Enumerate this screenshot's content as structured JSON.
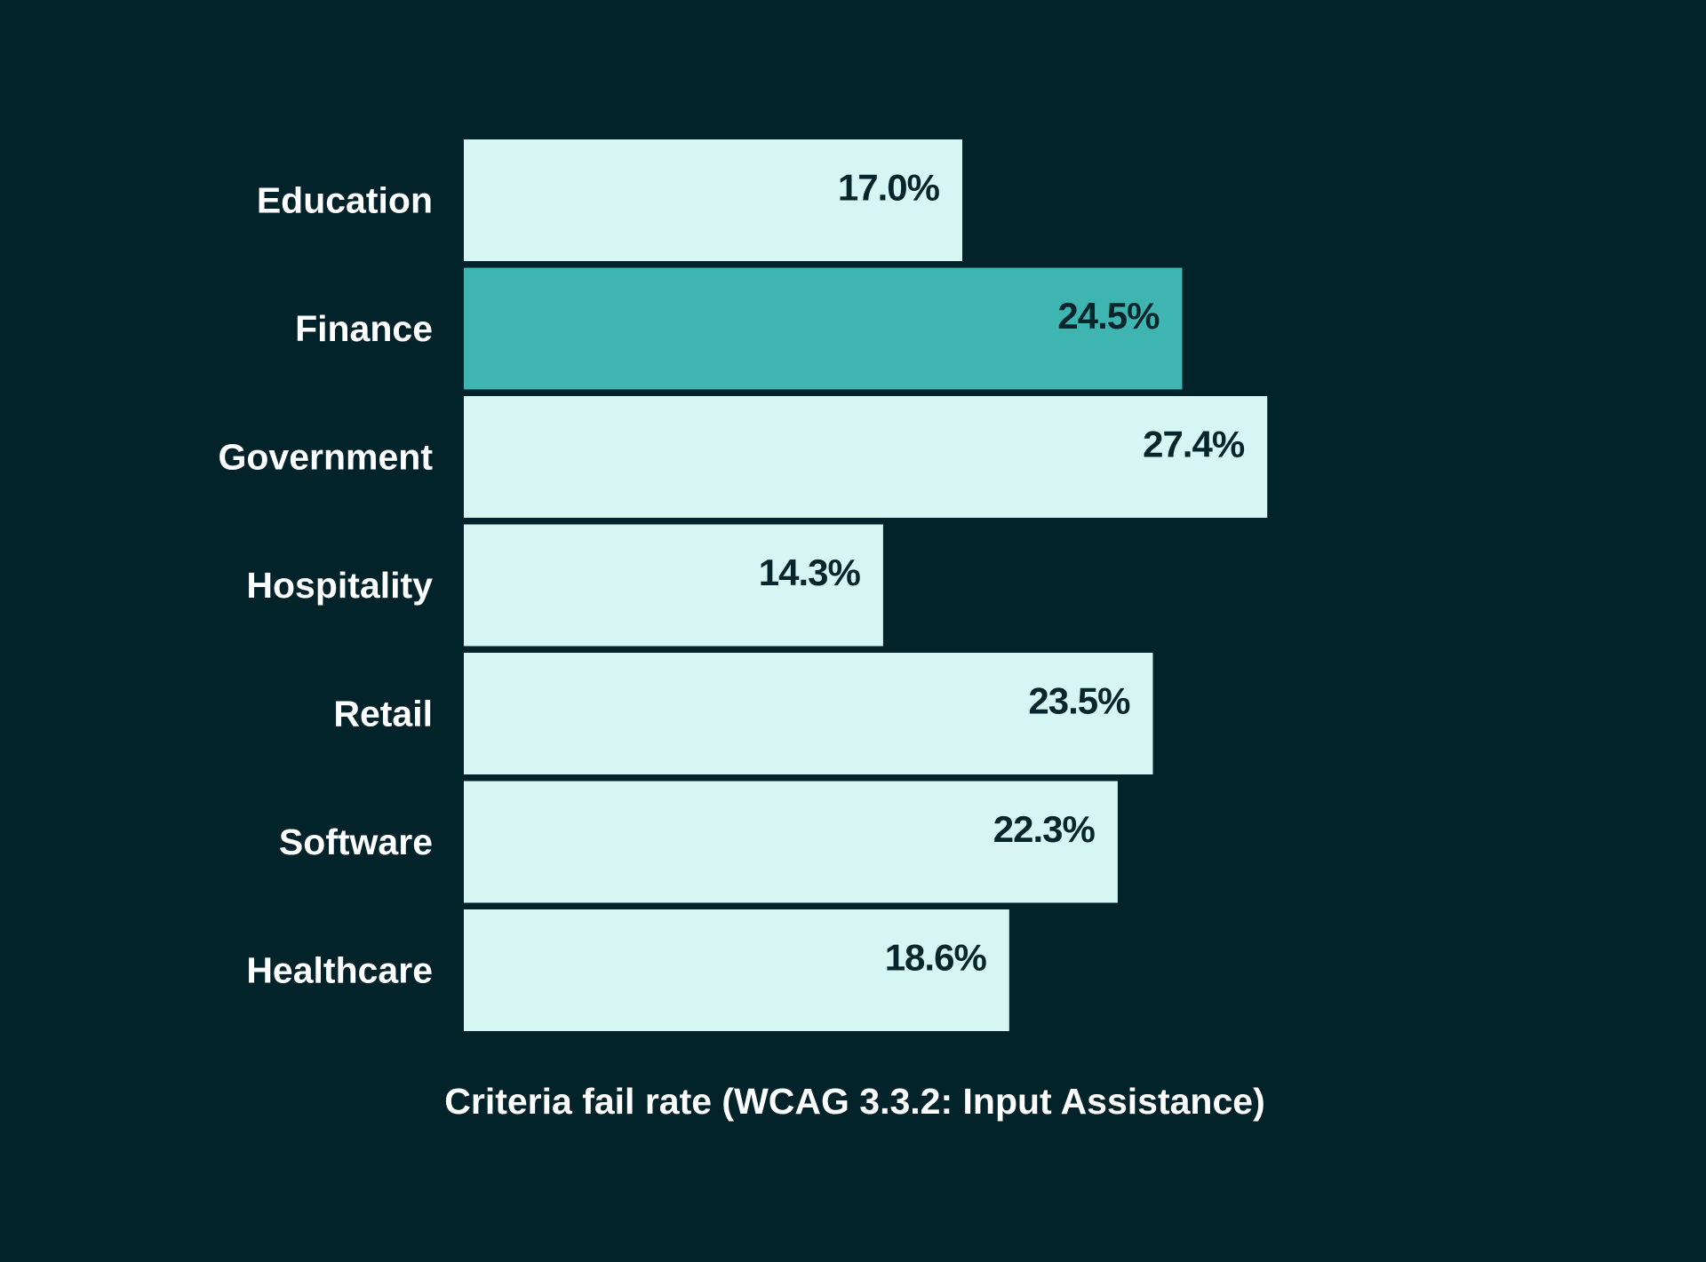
{
  "chart_data": {
    "type": "bar",
    "orientation": "horizontal",
    "title": "",
    "xlabel": "Criteria fail rate (WCAG 3.3.2: Input Assistance)",
    "ylabel": "",
    "categories": [
      "Education",
      "Finance",
      "Government",
      "Hospitality",
      "Retail",
      "Software",
      "Healthcare"
    ],
    "values": [
      17.0,
      24.5,
      27.4,
      14.3,
      23.5,
      22.3,
      18.6
    ],
    "value_labels": [
      "17.0%",
      "24.5%",
      "27.4%",
      "14.3%",
      "23.5%",
      "22.3%",
      "18.6%"
    ],
    "highlighted_category": "Finance",
    "grid": false,
    "colors": {
      "background": "#03232a",
      "bar": "#d6f5f3",
      "highlight": "#3eb5b0",
      "value_text": "#06262b",
      "label_text": "#ffffff"
    }
  }
}
